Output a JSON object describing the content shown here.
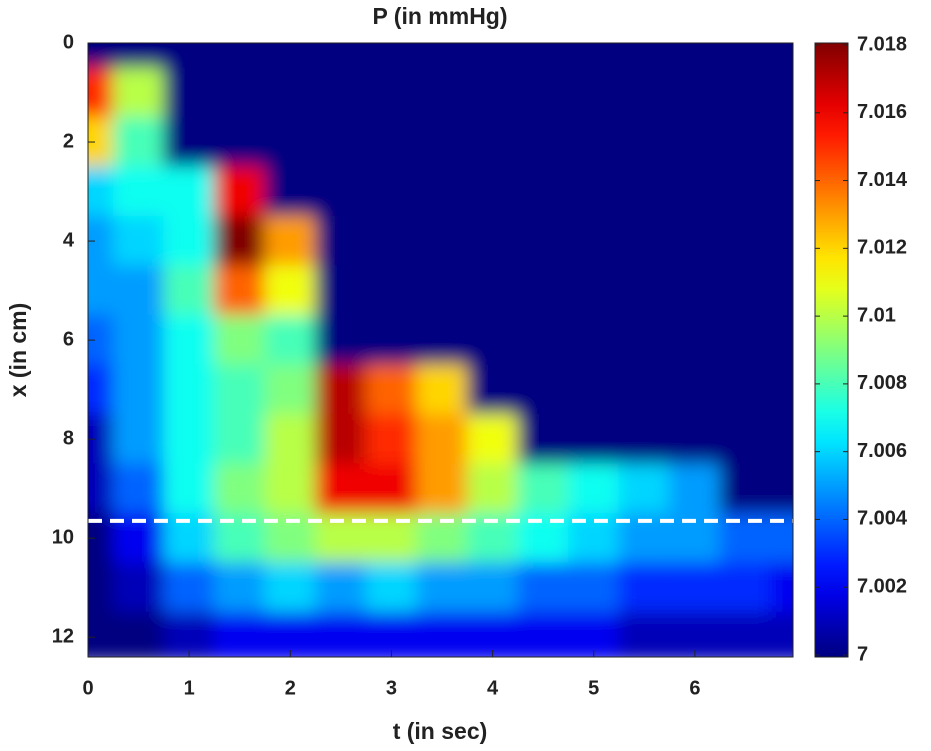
{
  "chart_data": {
    "type": "heatmap",
    "title": "P (in mmHg)",
    "x_label": "t (in sec)",
    "y_label": "x (in cm)",
    "x": [
      0,
      0.5,
      1,
      1.5,
      2,
      2.5,
      3,
      3.5,
      4,
      4.5,
      5,
      5.5,
      6,
      6.5,
      7
    ],
    "y": [
      0,
      1,
      2,
      3,
      4,
      5,
      6,
      7,
      8,
      9,
      10,
      11,
      12
    ],
    "values": [
      [
        7,
        7,
        7,
        7,
        7,
        7,
        7,
        7,
        7,
        7,
        7,
        7,
        7,
        7,
        7
      ],
      [
        7.015,
        7.01,
        7,
        7,
        7,
        7,
        7,
        7,
        7,
        7,
        7,
        7,
        7,
        7,
        7
      ],
      [
        7.012,
        7.008,
        7,
        7,
        7,
        7,
        7,
        7,
        7,
        7,
        7,
        7,
        7,
        7,
        7
      ],
      [
        7.006,
        7.007,
        7.007,
        7.016,
        7,
        7,
        7,
        7,
        7,
        7,
        7,
        7,
        7,
        7,
        7
      ],
      [
        7.005,
        7.006,
        7.007,
        7.018,
        7.013,
        7,
        7,
        7,
        7,
        7,
        7,
        7,
        7,
        7,
        7
      ],
      [
        7.005,
        7.005,
        7.008,
        7.014,
        7.011,
        7,
        7,
        7,
        7,
        7,
        7,
        7,
        7,
        7,
        7
      ],
      [
        7.004,
        7.005,
        7.007,
        7.009,
        7.008,
        7,
        7,
        7,
        7,
        7,
        7,
        7,
        7,
        7,
        7
      ],
      [
        7.003,
        7.005,
        7.007,
        7.008,
        7.009,
        7.017,
        7.014,
        7.012,
        7,
        7,
        7,
        7,
        7,
        7,
        7
      ],
      [
        7.001,
        7.005,
        7.007,
        7.008,
        7.01,
        7.017,
        7.015,
        7.013,
        7.011,
        7,
        7,
        7,
        7,
        7,
        7
      ],
      [
        7.001,
        7.004,
        7.007,
        7.009,
        7.01,
        7.016,
        7.016,
        7.013,
        7.01,
        7.008,
        7.007,
        7.006,
        7.005,
        7,
        7
      ],
      [
        7,
        7.002,
        7.006,
        7.008,
        7.009,
        7.01,
        7.01,
        7.009,
        7.008,
        7.007,
        7.006,
        7.005,
        7.005,
        7.004,
        7.004
      ],
      [
        7,
        7.001,
        7.004,
        7.005,
        7.006,
        7.005,
        7.006,
        7.005,
        7.005,
        7.004,
        7.004,
        7.003,
        7.003,
        7.003,
        7.002
      ],
      [
        7,
        7,
        7.001,
        7.002,
        7.002,
        7.002,
        7.002,
        7.002,
        7.002,
        7.002,
        7.002,
        7.001,
        7.001,
        7.001,
        7.001
      ]
    ],
    "xlim": [
      0,
      6.97
    ],
    "ylim": [
      0,
      12.4
    ],
    "y_reversed": true,
    "xticks": [
      0,
      1,
      2,
      3,
      4,
      5,
      6
    ],
    "yticks": [
      0,
      2,
      4,
      6,
      8,
      10,
      12
    ],
    "colormap": "jet",
    "clim": [
      7,
      7.018
    ],
    "cticks": [
      7,
      7.002,
      7.004,
      7.006,
      7.008,
      7.01,
      7.012,
      7.014,
      7.016,
      7.018
    ],
    "reference_line_y": 9.65,
    "reference_line_color": "#ffffff"
  }
}
